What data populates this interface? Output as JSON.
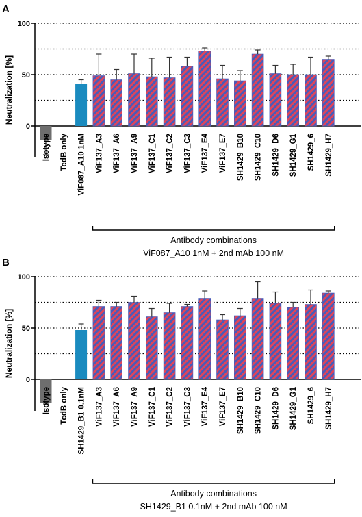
{
  "colors": {
    "isotype": "#6e6e6e",
    "single_mab": "#1a8bbf",
    "combo_stripe_red": "#e0455a",
    "combo_stripe_blue": "#4a5bb8",
    "axis": "#000000",
    "gridline": "#000000"
  },
  "chart_data": [
    {
      "panel_letter": "A",
      "type": "bar",
      "ylabel": "Neutralization [%]",
      "ylim": [
        -30,
        100
      ],
      "yticks": [
        0,
        50,
        100
      ],
      "dotted_gridlines": [
        25,
        50,
        75,
        100
      ],
      "categories": [
        "Isotype",
        "TcdB only",
        "ViF087_A10 1nM",
        "ViF137_A3",
        "ViF137_A6",
        "ViF137_A9",
        "ViF137_C1",
        "ViF137_C2",
        "ViF137_C3",
        "ViF137_E4",
        "ViF137_E7",
        "SH1429_B10",
        "SH1429_C10",
        "SH1429_D6",
        "SH1429_G1",
        "SH1429_6",
        "SH1429_H7"
      ],
      "values": [
        -14,
        null,
        41,
        49,
        45,
        51,
        48,
        47,
        58,
        73,
        46,
        44,
        70,
        51,
        50,
        50,
        65
      ],
      "error": [
        14,
        null,
        4,
        21,
        10,
        19,
        18,
        20,
        9,
        3,
        13,
        10,
        4,
        8,
        10,
        17,
        3
      ],
      "bar_style": [
        "isotype",
        "none",
        "single",
        "combo",
        "combo",
        "combo",
        "combo",
        "combo",
        "combo",
        "combo",
        "combo",
        "combo",
        "combo",
        "combo",
        "combo",
        "combo",
        "combo"
      ],
      "bracket_label_line1": "Antibody combinations",
      "bracket_label_line2": "ViF087_A10 1nM + 2nd mAb 100 nM",
      "bracket_from_index": 3,
      "bracket_to_index": 16
    },
    {
      "panel_letter": "B",
      "type": "bar",
      "ylabel": "Neutralization [%]",
      "ylim": [
        -30,
        100
      ],
      "yticks": [
        0,
        50,
        100
      ],
      "dotted_gridlines": [
        25,
        50,
        75,
        100
      ],
      "categories": [
        "Isotype",
        "TcdB only",
        "SH1429_B1 0.1nM",
        "ViF137_A3",
        "ViF137_A6",
        "ViF137_A9",
        "ViF137_C1",
        "ViF137_C2",
        "ViF137_C3",
        "ViF137_E4",
        "ViF137_E7",
        "SH1429_B10",
        "SH1429_C10",
        "SH1429_D6",
        "SH1429_G1",
        "SH1429_6",
        "SH1429_H7"
      ],
      "values": [
        -23,
        null,
        48,
        71,
        71,
        75,
        61,
        65,
        71,
        79,
        58,
        62,
        79,
        74,
        70,
        73,
        84
      ],
      "error": [
        1,
        null,
        6,
        6,
        4,
        6,
        8,
        9,
        2,
        7,
        5,
        7,
        16,
        11,
        5,
        14,
        2
      ],
      "bar_style": [
        "isotype",
        "none",
        "single",
        "combo",
        "combo",
        "combo",
        "combo",
        "combo",
        "combo",
        "combo",
        "combo",
        "combo",
        "combo",
        "combo",
        "combo",
        "combo",
        "combo"
      ],
      "bracket_label_line1": "Antibody combinations",
      "bracket_label_line2": "SH1429_B1 0.1nM + 2nd mAb 100 nM",
      "bracket_from_index": 3,
      "bracket_to_index": 16
    }
  ]
}
